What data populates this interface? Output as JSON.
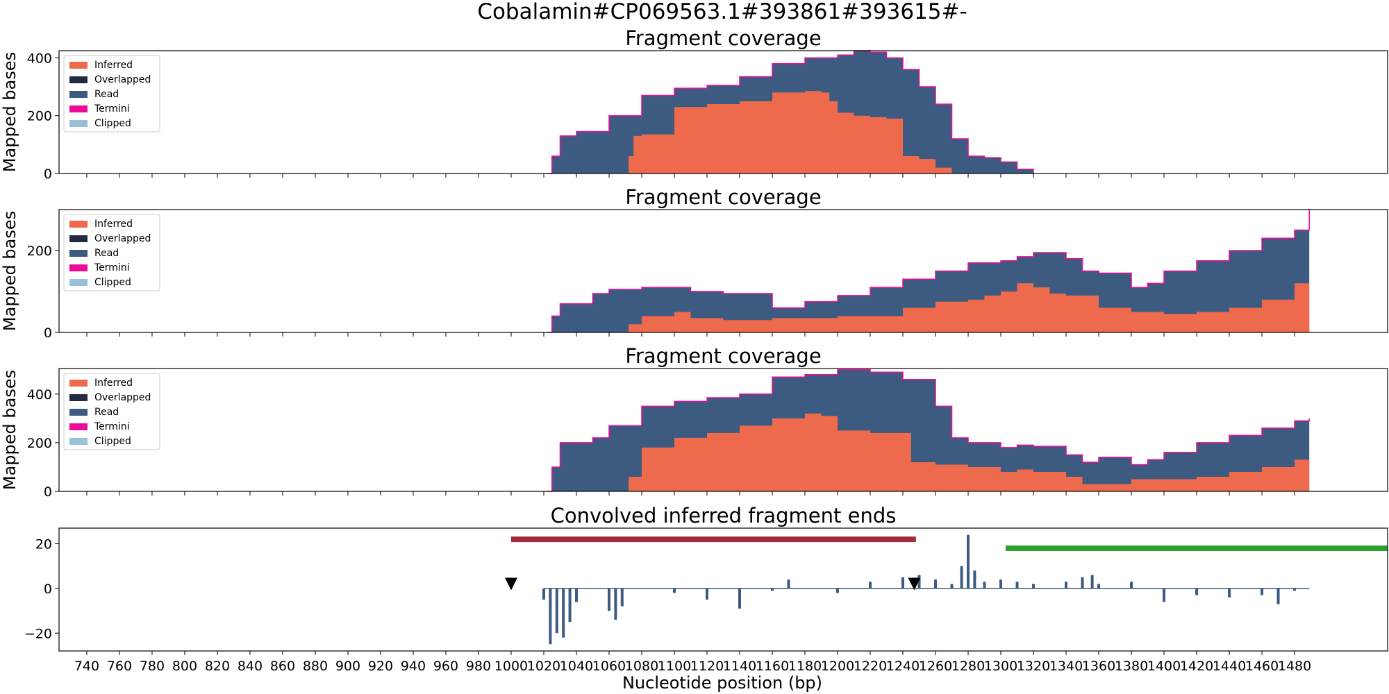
{
  "figure": {
    "suptitle": "Cobalamin#CP069563.1#393861#393615#-",
    "xlabel": "Nucleotide position (bp)"
  },
  "legend_items": [
    {
      "label": "Inferred",
      "color": "#ee6a4d"
    },
    {
      "label": "Overlapped",
      "color": "#232b42"
    },
    {
      "label": "Read",
      "color": "#3d5a80"
    },
    {
      "label": "Termini",
      "color": "#ee0a97"
    },
    {
      "label": "Clipped",
      "color": "#98c1d9"
    }
  ],
  "chart_data": [
    {
      "type": "area",
      "title": "Fragment coverage",
      "ylabel": "Mapped bases",
      "xlim": [
        723,
        1537
      ],
      "ylim": [
        0,
        425
      ],
      "yticks": [
        0,
        200,
        400
      ],
      "legend": "top-left",
      "series": [
        {
          "name": "Read",
          "x": [
            1022,
            1025,
            1030,
            1040,
            1060,
            1080,
            1100,
            1120,
            1140,
            1160,
            1180,
            1200,
            1210,
            1220,
            1230,
            1240,
            1250,
            1260,
            1270,
            1280,
            1290,
            1300,
            1310,
            1320
          ],
          "values": [
            0,
            60,
            130,
            145,
            200,
            270,
            295,
            305,
            335,
            380,
            400,
            410,
            425,
            420,
            400,
            360,
            300,
            240,
            120,
            60,
            55,
            40,
            15,
            0
          ]
        },
        {
          "name": "Inferred",
          "x": [
            1070,
            1072,
            1075,
            1080,
            1100,
            1120,
            1140,
            1160,
            1180,
            1190,
            1195,
            1200,
            1210,
            1220,
            1230,
            1240,
            1250,
            1260,
            1270
          ],
          "values": [
            0,
            60,
            130,
            135,
            230,
            240,
            250,
            280,
            285,
            280,
            250,
            210,
            200,
            195,
            190,
            60,
            50,
            20,
            0
          ]
        }
      ]
    },
    {
      "type": "area",
      "title": "Fragment coverage",
      "ylabel": "Mapped bases",
      "xlim": [
        723,
        1537
      ],
      "ylim": [
        0,
        300
      ],
      "yticks": [
        0,
        200
      ],
      "legend": "top-left",
      "series": [
        {
          "name": "Read",
          "x": [
            1022,
            1025,
            1030,
            1050,
            1060,
            1080,
            1100,
            1110,
            1130,
            1150,
            1160,
            1180,
            1200,
            1220,
            1240,
            1260,
            1280,
            1300,
            1310,
            1320,
            1340,
            1350,
            1360,
            1380,
            1390,
            1400,
            1420,
            1440,
            1460,
            1480,
            1489
          ],
          "values": [
            0,
            40,
            70,
            95,
            105,
            110,
            110,
            100,
            95,
            95,
            60,
            75,
            90,
            110,
            130,
            150,
            170,
            175,
            185,
            195,
            180,
            150,
            145,
            110,
            120,
            150,
            175,
            200,
            230,
            250,
            300
          ]
        },
        {
          "name": "Inferred",
          "x": [
            1070,
            1072,
            1080,
            1100,
            1110,
            1130,
            1160,
            1200,
            1240,
            1260,
            1280,
            1290,
            1300,
            1310,
            1320,
            1330,
            1340,
            1360,
            1380,
            1400,
            1420,
            1440,
            1460,
            1480,
            1489
          ],
          "values": [
            0,
            20,
            40,
            50,
            35,
            30,
            35,
            40,
            60,
            75,
            80,
            90,
            100,
            120,
            110,
            95,
            90,
            60,
            50,
            45,
            50,
            60,
            80,
            120,
            140
          ]
        }
      ]
    },
    {
      "type": "area",
      "title": "Fragment coverage",
      "ylabel": "Mapped bases",
      "xlim": [
        723,
        1537
      ],
      "ylim": [
        0,
        505
      ],
      "yticks": [
        0,
        200,
        400
      ],
      "legend": "top-left",
      "series": [
        {
          "name": "Read",
          "x": [
            1022,
            1025,
            1030,
            1050,
            1060,
            1080,
            1100,
            1120,
            1140,
            1160,
            1180,
            1200,
            1220,
            1240,
            1260,
            1270,
            1280,
            1300,
            1310,
            1320,
            1340,
            1350,
            1360,
            1380,
            1390,
            1400,
            1420,
            1440,
            1460,
            1480,
            1489
          ],
          "values": [
            0,
            100,
            200,
            220,
            270,
            350,
            370,
            385,
            400,
            470,
            480,
            500,
            490,
            460,
            350,
            220,
            200,
            180,
            190,
            185,
            150,
            120,
            140,
            110,
            130,
            160,
            200,
            230,
            260,
            290,
            300
          ]
        },
        {
          "name": "Inferred",
          "x": [
            1070,
            1072,
            1080,
            1100,
            1120,
            1140,
            1160,
            1180,
            1190,
            1200,
            1220,
            1240,
            1245,
            1260,
            1280,
            1300,
            1310,
            1320,
            1340,
            1350,
            1360,
            1380,
            1400,
            1420,
            1440,
            1460,
            1480,
            1489
          ],
          "values": [
            0,
            60,
            180,
            220,
            240,
            270,
            300,
            320,
            310,
            250,
            240,
            240,
            120,
            110,
            100,
            80,
            90,
            80,
            60,
            30,
            30,
            50,
            50,
            60,
            80,
            100,
            130,
            140
          ]
        }
      ]
    },
    {
      "type": "bar",
      "title": "Convolved inferred fragment ends",
      "xlabel": "Nucleotide position (bp)",
      "ylabel": "",
      "xlim": [
        723,
        1537
      ],
      "ylim": [
        -28,
        27
      ],
      "yticks": [
        -20,
        0,
        20
      ],
      "xticks": [
        740,
        760,
        780,
        800,
        820,
        840,
        860,
        880,
        900,
        920,
        940,
        960,
        980,
        1000,
        1020,
        1040,
        1060,
        1080,
        1100,
        1120,
        1140,
        1160,
        1180,
        1200,
        1220,
        1240,
        1260,
        1280,
        1300,
        1320,
        1340,
        1360,
        1380,
        1400,
        1420,
        1440,
        1460,
        1480
      ],
      "bars_x": [
        1020,
        1024,
        1028,
        1032,
        1036,
        1040,
        1060,
        1064,
        1068,
        1100,
        1120,
        1140,
        1160,
        1170,
        1200,
        1220,
        1240,
        1250,
        1260,
        1270,
        1276,
        1280,
        1284,
        1290,
        1300,
        1310,
        1320,
        1340,
        1350,
        1356,
        1360,
        1380,
        1400,
        1420,
        1440,
        1460,
        1470,
        1480
      ],
      "bars_y": [
        -5,
        -25,
        -20,
        -22,
        -15,
        -6,
        -10,
        -14,
        -8,
        -2,
        -5,
        -9,
        -1,
        4,
        -2,
        3,
        5,
        6,
        4,
        2,
        10,
        24,
        8,
        3,
        4,
        3,
        2,
        3,
        5,
        6,
        2,
        3,
        -6,
        -3,
        -4,
        -3,
        -7,
        -1
      ],
      "segments": [
        {
          "name": "red-bar",
          "x0": 1000,
          "x1": 1248,
          "y": 22,
          "color": "#a52a3a"
        },
        {
          "name": "green-bar",
          "x0": 1303,
          "x1": 1537,
          "y": 18,
          "color": "#2ca02c"
        }
      ],
      "markers": [
        {
          "x": 1000,
          "y": 2
        },
        {
          "x": 1247,
          "y": 2
        }
      ]
    }
  ]
}
